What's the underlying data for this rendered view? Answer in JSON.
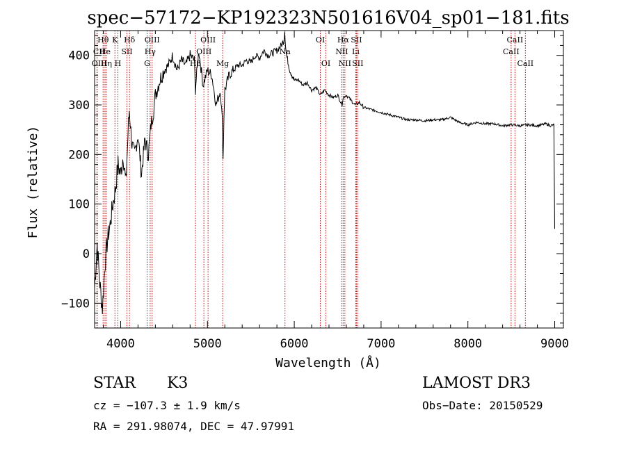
{
  "chart_data": {
    "type": "line",
    "title": "spec−57172−KP192323N501616V04_sp01−181.fits",
    "xlabel": "Wavelength (Å)",
    "ylabel": "Flux (relative)",
    "xlim": [
      3700,
      9100
    ],
    "ylim": [
      -150,
      450
    ],
    "xticks": [
      4000,
      5000,
      6000,
      7000,
      8000,
      9000
    ],
    "yticks": [
      -100,
      0,
      100,
      200,
      300,
      400
    ],
    "ytick_labels": [
      "−100",
      "0",
      "100",
      "200",
      "300",
      "400"
    ],
    "series": [
      {
        "name": "spectrum",
        "color": "#000000",
        "x": [
          3700,
          3730,
          3760,
          3790,
          3820,
          3850,
          3880,
          3910,
          3940,
          3970,
          4000,
          4030,
          4060,
          4090,
          4100,
          4130,
          4160,
          4200,
          4240,
          4280,
          4320,
          4350,
          4380,
          4400,
          4450,
          4500,
          4550,
          4600,
          4650,
          4700,
          4750,
          4800,
          4850,
          4860,
          4900,
          4950,
          5000,
          5050,
          5100,
          5150,
          5170,
          5180,
          5190,
          5200,
          5250,
          5300,
          5350,
          5400,
          5450,
          5500,
          5550,
          5600,
          5650,
          5700,
          5750,
          5800,
          5850,
          5880,
          5890,
          5900,
          5910,
          5950,
          6000,
          6050,
          6100,
          6150,
          6200,
          6250,
          6300,
          6350,
          6400,
          6450,
          6500,
          6550,
          6563,
          6600,
          6650,
          6700,
          6750,
          6800,
          6900,
          7000,
          7100,
          7200,
          7300,
          7400,
          7500,
          7600,
          7700,
          7800,
          7900,
          8000,
          8100,
          8200,
          8300,
          8400,
          8500,
          8600,
          8700,
          8800,
          8900,
          8950,
          8990,
          9000
        ],
        "y": [
          -70,
          20,
          -60,
          -110,
          -20,
          30,
          60,
          100,
          130,
          180,
          160,
          200,
          140,
          260,
          290,
          220,
          200,
          240,
          160,
          230,
          200,
          260,
          290,
          320,
          350,
          370,
          380,
          400,
          370,
          390,
          380,
          400,
          390,
          330,
          410,
          340,
          370,
          360,
          300,
          330,
          270,
          190,
          280,
          330,
          360,
          370,
          380,
          380,
          390,
          385,
          400,
          395,
          410,
          400,
          405,
          410,
          420,
          430,
          450,
          420,
          400,
          370,
          350,
          350,
          340,
          345,
          330,
          335,
          320,
          330,
          320,
          315,
          320,
          300,
          315,
          320,
          310,
          300,
          305,
          295,
          290,
          285,
          280,
          275,
          270,
          270,
          268,
          270,
          270,
          275,
          265,
          260,
          265,
          262,
          262,
          258,
          260,
          258,
          260,
          258,
          262,
          258,
          260,
          50
        ]
      }
    ],
    "lines": [
      {
        "name": "Hθ",
        "x": 3798,
        "row": 0,
        "dx": 0
      },
      {
        "name": "CII",
        "x": 3727,
        "row": 1,
        "dx": 3
      },
      {
        "name": "He",
        "x": 3820,
        "row": 1,
        "dx": 0
      },
      {
        "name": "OIII",
        "x": 3730,
        "row": 2,
        "dx": 3
      },
      {
        "name": "Hη",
        "x": 3835,
        "row": 2,
        "dx": 0
      },
      {
        "name": "K",
        "x": 3934,
        "row": 0,
        "dx": 0
      },
      {
        "name": "H",
        "x": 3968,
        "row": 2,
        "dx": 0
      },
      {
        "name": "SII",
        "x": 4072,
        "row": 1,
        "dx": 0
      },
      {
        "name": "Hδ",
        "x": 4102,
        "row": 0,
        "dx": 0
      },
      {
        "name": "OIII",
        "x": 4363,
        "row": 0,
        "dx": 0
      },
      {
        "name": "Hγ",
        "x": 4340,
        "row": 1,
        "dx": 0
      },
      {
        "name": "G",
        "x": 4305,
        "row": 2,
        "dx": 0
      },
      {
        "name": "Hβ",
        "x": 4861,
        "row": 2,
        "dx": 0
      },
      {
        "name": "OIII",
        "x": 4959,
        "row": 1,
        "dx": 0
      },
      {
        "name": "OIII",
        "x": 5007,
        "row": 0,
        "dx": 0
      },
      {
        "name": "Mg",
        "x": 5175,
        "row": 2,
        "dx": 0
      },
      {
        "name": "Na",
        "x": 5893,
        "row": 1,
        "dx": 0
      },
      {
        "name": "OI",
        "x": 6300,
        "row": 0,
        "dx": 0
      },
      {
        "name": "OI",
        "x": 6364,
        "row": 2,
        "dx": 0
      },
      {
        "name": "NII",
        "x": 6548,
        "row": 1,
        "dx": 0
      },
      {
        "name": "Hα",
        "x": 6563,
        "row": 0,
        "dx": 0
      },
      {
        "name": "NII",
        "x": 6583,
        "row": 2,
        "dx": 0
      },
      {
        "name": "Li",
        "x": 6708,
        "row": 1,
        "dx": 0
      },
      {
        "name": "SII",
        "x": 6716,
        "row": 0,
        "dx": 0
      },
      {
        "name": "SII",
        "x": 6731,
        "row": 2,
        "dx": 0
      },
      {
        "name": "CaII",
        "x": 8498,
        "row": 1,
        "dx": 0
      },
      {
        "name": "CaII",
        "x": 8542,
        "row": 0,
        "dx": 0
      },
      {
        "name": "CaII",
        "x": 8662,
        "row": 2,
        "dx": 0
      }
    ],
    "line_color": "#cc0000"
  },
  "info": {
    "object_class": "STAR",
    "subclass": "K3",
    "survey": "LAMOST DR3",
    "cz": "cz = −107.3 ± 1.9 km/s",
    "obs_date": "Obs−Date: 20150529",
    "radec": "RA = 291.98074, DEC =  47.97991"
  }
}
